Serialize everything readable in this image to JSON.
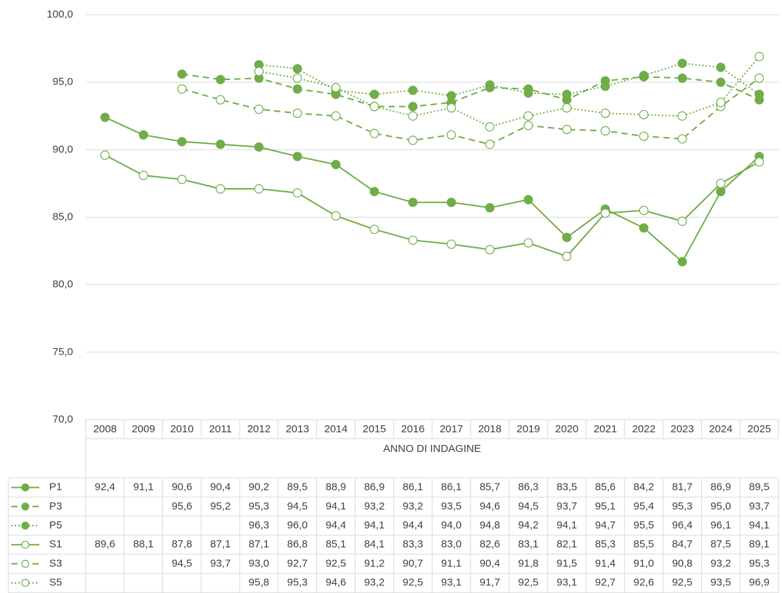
{
  "chart_data": {
    "type": "line",
    "x_label": "ANNO DI INDAGINE",
    "categories": [
      "2008",
      "2009",
      "2010",
      "2011",
      "2012",
      "2013",
      "2014",
      "2015",
      "2016",
      "2017",
      "2018",
      "2019",
      "2020",
      "2021",
      "2022",
      "2023",
      "2024",
      "2025"
    ],
    "ylim": [
      70,
      100
    ],
    "yticks": [
      {
        "value": 70,
        "label": "70,0"
      },
      {
        "value": 75,
        "label": "75,0"
      },
      {
        "value": 80,
        "label": "80,0"
      },
      {
        "value": 85,
        "label": "85,0"
      },
      {
        "value": 90,
        "label": "90,0"
      },
      {
        "value": 95,
        "label": "95,0"
      },
      {
        "value": 100,
        "label": "100,0"
      }
    ],
    "grid": true,
    "data_table": true,
    "series": [
      {
        "name": "P1",
        "color": "#70ad47",
        "line_style": "solid",
        "marker": "filled",
        "values": [
          92.4,
          91.1,
          90.6,
          90.4,
          90.2,
          89.5,
          88.9,
          86.9,
          86.1,
          86.1,
          85.7,
          86.3,
          83.5,
          85.6,
          84.2,
          81.7,
          86.9,
          89.5
        ],
        "value_labels": [
          "92,4",
          "91,1",
          "90,6",
          "90,4",
          "90,2",
          "89,5",
          "88,9",
          "86,9",
          "86,1",
          "86,1",
          "85,7",
          "86,3",
          "83,5",
          "85,6",
          "84,2",
          "81,7",
          "86,9",
          "89,5"
        ]
      },
      {
        "name": "P3",
        "color": "#70ad47",
        "line_style": "dashed",
        "marker": "filled",
        "values": [
          null,
          null,
          95.6,
          95.2,
          95.3,
          94.5,
          94.1,
          93.2,
          93.2,
          93.5,
          94.6,
          94.5,
          93.7,
          95.1,
          95.4,
          95.3,
          95.0,
          93.7
        ],
        "value_labels": [
          null,
          null,
          "95,6",
          "95,2",
          "95,3",
          "94,5",
          "94,1",
          "93,2",
          "93,2",
          "93,5",
          "94,6",
          "94,5",
          "93,7",
          "95,1",
          "95,4",
          "95,3",
          "95,0",
          "93,7"
        ]
      },
      {
        "name": "P5",
        "color": "#70ad47",
        "line_style": "dotted",
        "marker": "filled",
        "values": [
          null,
          null,
          null,
          null,
          96.3,
          96.0,
          94.4,
          94.1,
          94.4,
          94.0,
          94.8,
          94.2,
          94.1,
          94.7,
          95.5,
          96.4,
          96.1,
          94.1
        ],
        "value_labels": [
          null,
          null,
          null,
          null,
          "96,3",
          "96,0",
          "94,4",
          "94,1",
          "94,4",
          "94,0",
          "94,8",
          "94,2",
          "94,1",
          "94,7",
          "95,5",
          "96,4",
          "96,1",
          "94,1"
        ]
      },
      {
        "name": "S1",
        "color": "#70ad47",
        "line_style": "solid",
        "marker": "open",
        "values": [
          89.6,
          88.1,
          87.8,
          87.1,
          87.1,
          86.8,
          85.1,
          84.1,
          83.3,
          83.0,
          82.6,
          83.1,
          82.1,
          85.3,
          85.5,
          84.7,
          87.5,
          89.1
        ],
        "value_labels": [
          "89,6",
          "88,1",
          "87,8",
          "87,1",
          "87,1",
          "86,8",
          "85,1",
          "84,1",
          "83,3",
          "83,0",
          "82,6",
          "83,1",
          "82,1",
          "85,3",
          "85,5",
          "84,7",
          "87,5",
          "89,1"
        ]
      },
      {
        "name": "S3",
        "color": "#70ad47",
        "line_style": "dashed",
        "marker": "open",
        "values": [
          null,
          null,
          94.5,
          93.7,
          93.0,
          92.7,
          92.5,
          91.2,
          90.7,
          91.1,
          90.4,
          91.8,
          91.5,
          91.4,
          91.0,
          90.8,
          93.2,
          95.3
        ],
        "value_labels": [
          null,
          null,
          "94,5",
          "93,7",
          "93,0",
          "92,7",
          "92,5",
          "91,2",
          "90,7",
          "91,1",
          "90,4",
          "91,8",
          "91,5",
          "91,4",
          "91,0",
          "90,8",
          "93,2",
          "95,3"
        ]
      },
      {
        "name": "S5",
        "color": "#70ad47",
        "line_style": "dotted",
        "marker": "open",
        "values": [
          null,
          null,
          null,
          null,
          95.8,
          95.3,
          94.6,
          93.2,
          92.5,
          93.1,
          91.7,
          92.5,
          93.1,
          92.7,
          92.6,
          92.5,
          93.5,
          96.9
        ],
        "value_labels": [
          null,
          null,
          null,
          null,
          "95,8",
          "95,3",
          "94,6",
          "93,2",
          "92,5",
          "93,1",
          "91,7",
          "92,5",
          "93,1",
          "92,7",
          "92,6",
          "92,5",
          "93,5",
          "96,9"
        ]
      }
    ]
  }
}
